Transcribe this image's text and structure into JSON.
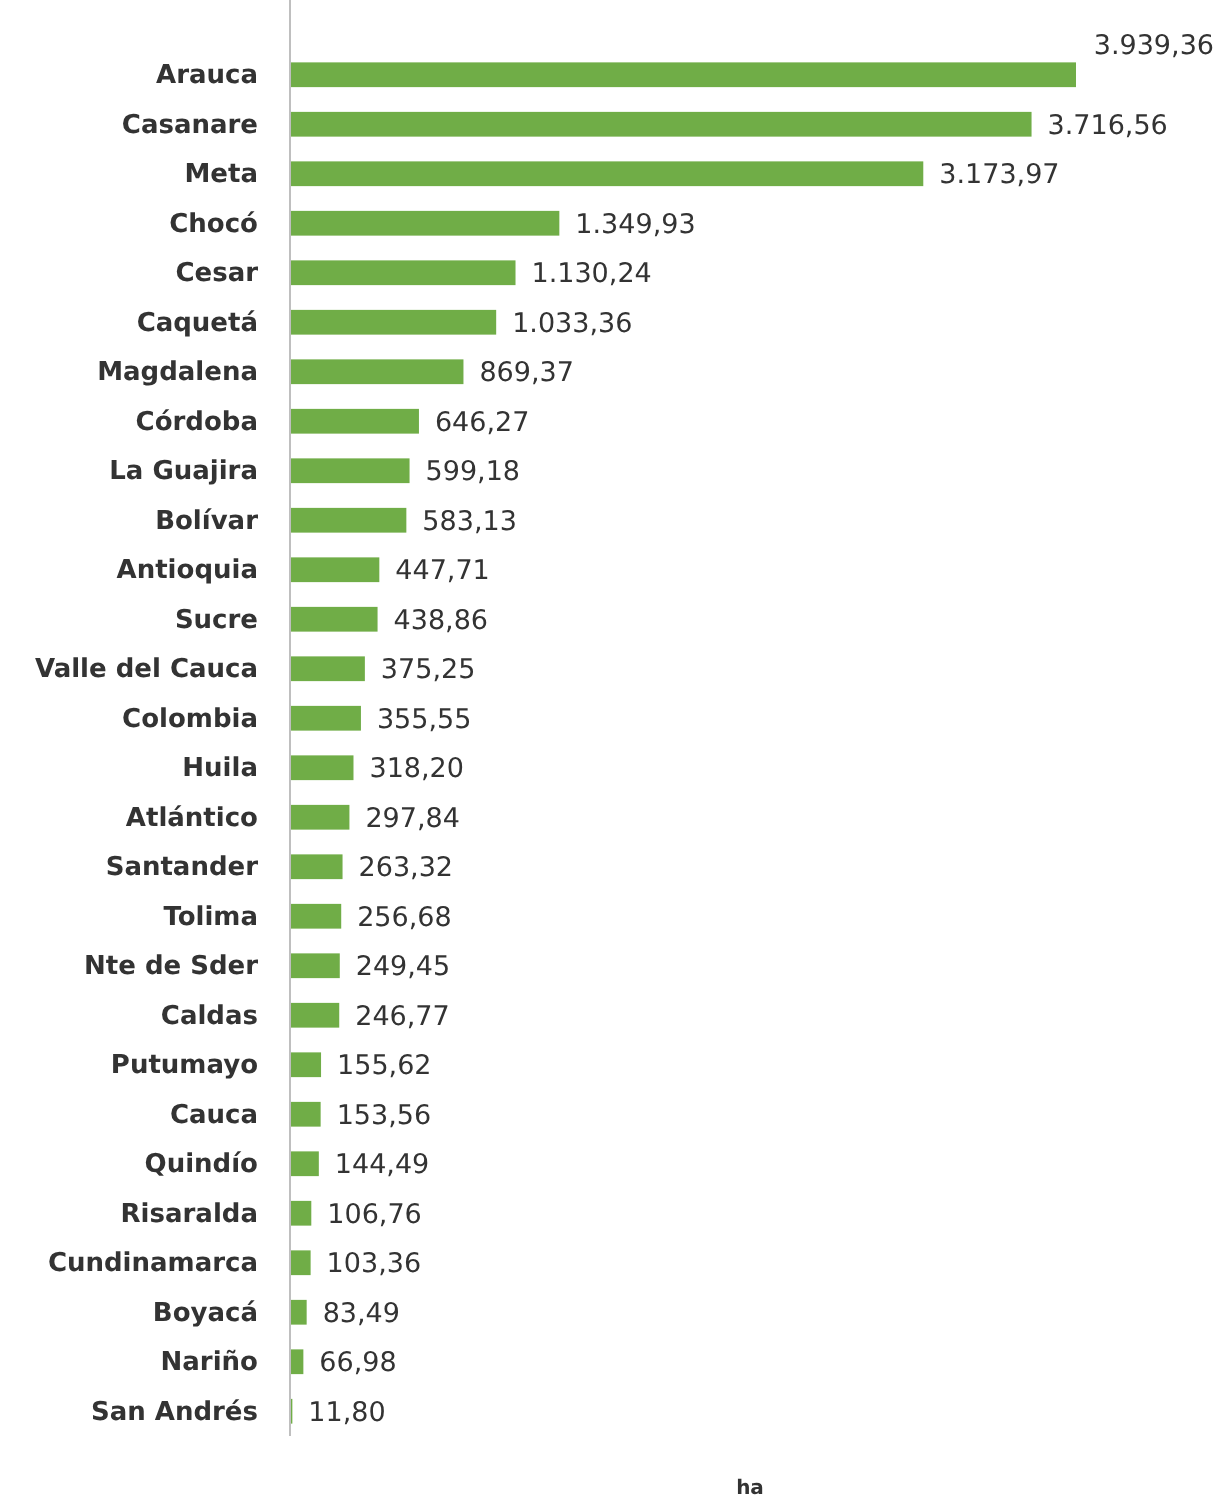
{
  "chart_data": {
    "type": "bar",
    "orientation": "horizontal",
    "xlabel": "ha",
    "categories": [
      "Arauca",
      "Casanare",
      "Meta",
      "Chocó",
      "Cesar",
      "Caquetá",
      "Magdalena",
      "Córdoba",
      "La Guajira",
      "Bolívar",
      "Antioquia",
      "Sucre",
      "Valle del Cauca",
      "Colombia",
      "Huila",
      "Atlántico",
      "Santander",
      "Tolima",
      "Nte de Sder",
      "Caldas",
      "Putumayo",
      "Cauca",
      "Quindío",
      "Risaralda",
      "Cundinamarca",
      "Boyacá",
      "Nariño",
      "San Andrés"
    ],
    "values": [
      3939.36,
      3716.56,
      3173.97,
      1349.93,
      1130.24,
      1033.36,
      869.37,
      646.27,
      599.18,
      583.13,
      447.71,
      438.86,
      375.25,
      355.55,
      318.2,
      297.84,
      263.32,
      256.68,
      249.45,
      246.77,
      155.62,
      153.56,
      144.49,
      106.76,
      103.36,
      83.49,
      66.98,
      11.8
    ],
    "value_labels": [
      "3.939,36",
      "3.716,56",
      "3.173,97",
      "1.349,93",
      "1.130,24",
      "1.033,36",
      "869,37",
      "646,27",
      "599,18",
      "583,13",
      "447,71",
      "438,86",
      "375,25",
      "355,55",
      "318,20",
      "297,84",
      "263,32",
      "256,68",
      "249,45",
      "246,77",
      "155,62",
      "153,56",
      "144,49",
      "106,76",
      "103,36",
      "83,49",
      "66,98",
      "11,80"
    ],
    "color": "#70ad47",
    "tick_labels": "y"
  }
}
